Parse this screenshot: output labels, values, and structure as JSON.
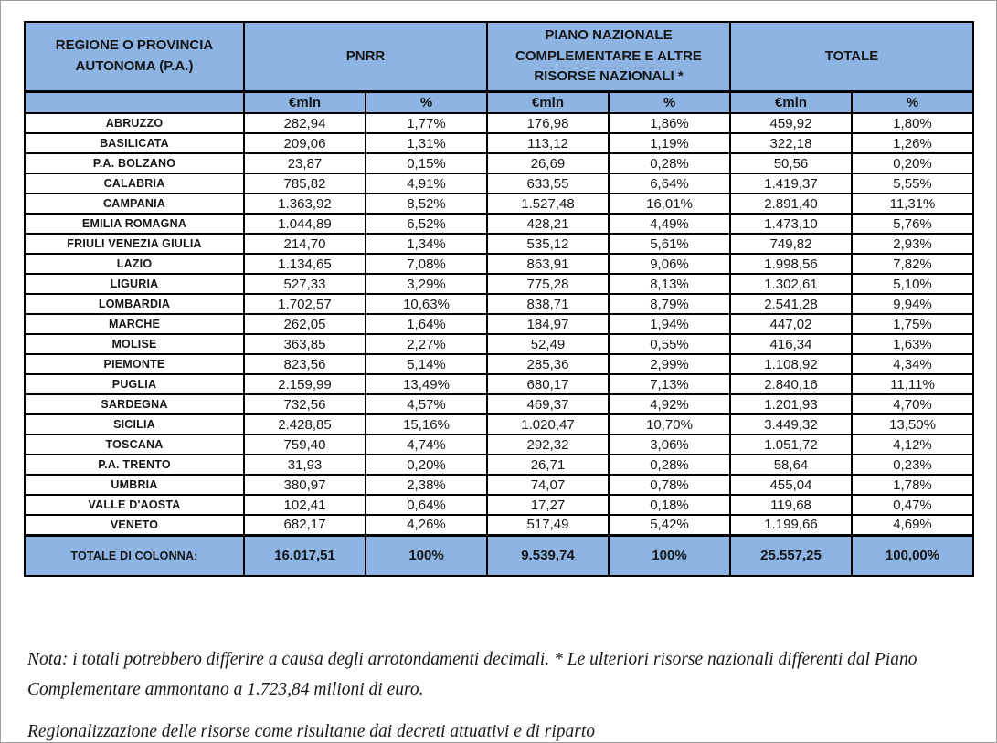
{
  "colors": {
    "header_blue": "#8DB4E2",
    "border": "#000000"
  },
  "table": {
    "header": {
      "region_label": "REGIONE O PROVINCIA AUTONOMA (P.A.)",
      "groups": [
        {
          "label": "PNRR"
        },
        {
          "label": "PIANO NAZIONALE COMPLEMENTARE E ALTRE RISORSE NAZIONALI *"
        },
        {
          "label": "TOTALE"
        }
      ],
      "subheaders": [
        "€mln",
        "%",
        "€mln",
        "%",
        "€mln",
        "%"
      ]
    },
    "rows": [
      {
        "region": "ABRUZZO",
        "values": [
          "282,94",
          "1,77%",
          "176,98",
          "1,86%",
          "459,92",
          "1,80%"
        ]
      },
      {
        "region": "BASILICATA",
        "values": [
          "209,06",
          "1,31%",
          "113,12",
          "1,19%",
          "322,18",
          "1,26%"
        ]
      },
      {
        "region": "P.A. BOLZANO",
        "values": [
          "23,87",
          "0,15%",
          "26,69",
          "0,28%",
          "50,56",
          "0,20%"
        ]
      },
      {
        "region": "CALABRIA",
        "values": [
          "785,82",
          "4,91%",
          "633,55",
          "6,64%",
          "1.419,37",
          "5,55%"
        ]
      },
      {
        "region": "CAMPANIA",
        "values": [
          "1.363,92",
          "8,52%",
          "1.527,48",
          "16,01%",
          "2.891,40",
          "11,31%"
        ]
      },
      {
        "region": "EMILIA ROMAGNA",
        "values": [
          "1.044,89",
          "6,52%",
          "428,21",
          "4,49%",
          "1.473,10",
          "5,76%"
        ]
      },
      {
        "region": "FRIULI VENEZIA GIULIA",
        "values": [
          "214,70",
          "1,34%",
          "535,12",
          "5,61%",
          "749,82",
          "2,93%"
        ]
      },
      {
        "region": "LAZIO",
        "values": [
          "1.134,65",
          "7,08%",
          "863,91",
          "9,06%",
          "1.998,56",
          "7,82%"
        ]
      },
      {
        "region": "LIGURIA",
        "values": [
          "527,33",
          "3,29%",
          "775,28",
          "8,13%",
          "1.302,61",
          "5,10%"
        ]
      },
      {
        "region": "LOMBARDIA",
        "values": [
          "1.702,57",
          "10,63%",
          "838,71",
          "8,79%",
          "2.541,28",
          "9,94%"
        ]
      },
      {
        "region": "MARCHE",
        "values": [
          "262,05",
          "1,64%",
          "184,97",
          "1,94%",
          "447,02",
          "1,75%"
        ]
      },
      {
        "region": "MOLISE",
        "values": [
          "363,85",
          "2,27%",
          "52,49",
          "0,55%",
          "416,34",
          "1,63%"
        ]
      },
      {
        "region": "PIEMONTE",
        "values": [
          "823,56",
          "5,14%",
          "285,36",
          "2,99%",
          "1.108,92",
          "4,34%"
        ]
      },
      {
        "region": "PUGLIA",
        "values": [
          "2.159,99",
          "13,49%",
          "680,17",
          "7,13%",
          "2.840,16",
          "11,11%"
        ]
      },
      {
        "region": "SARDEGNA",
        "values": [
          "732,56",
          "4,57%",
          "469,37",
          "4,92%",
          "1.201,93",
          "4,70%"
        ]
      },
      {
        "region": "SICILIA",
        "values": [
          "2.428,85",
          "15,16%",
          "1.020,47",
          "10,70%",
          "3.449,32",
          "13,50%"
        ]
      },
      {
        "region": "TOSCANA",
        "values": [
          "759,40",
          "4,74%",
          "292,32",
          "3,06%",
          "1.051,72",
          "4,12%"
        ]
      },
      {
        "region": "P.A. TRENTO",
        "values": [
          "31,93",
          "0,20%",
          "26,71",
          "0,28%",
          "58,64",
          "0,23%"
        ]
      },
      {
        "region": "UMBRIA",
        "values": [
          "380,97",
          "2,38%",
          "74,07",
          "0,78%",
          "455,04",
          "1,78%"
        ]
      },
      {
        "region": "VALLE D'AOSTA",
        "values": [
          "102,41",
          "0,64%",
          "17,27",
          "0,18%",
          "119,68",
          "0,47%"
        ]
      },
      {
        "region": "VENETO",
        "values": [
          "682,17",
          "4,26%",
          "517,49",
          "5,42%",
          "1.199,66",
          "4,69%"
        ]
      }
    ],
    "totals": {
      "label": "TOTALE DI COLONNA:",
      "values": [
        "16.017,51",
        "100%",
        "9.539,74",
        "100%",
        "25.557,25",
        "100,00%"
      ]
    }
  },
  "notes": {
    "paragraph1": "Nota: i totali potrebbero differire a causa degli arrotondamenti decimali. * Le ulteriori risorse nazionali differenti dal Piano Complementare ammontano a 1.723,84 milioni di euro.",
    "paragraph2": "Regionalizzazione delle risorse come risultante dai decreti attuativi e di riparto"
  }
}
